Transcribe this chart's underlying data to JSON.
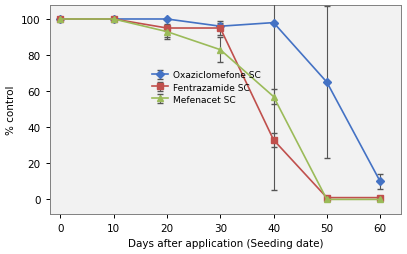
{
  "days": [
    0,
    10,
    20,
    30,
    40,
    50,
    60
  ],
  "oxaziclomefone": [
    100,
    100,
    100,
    96,
    98,
    65,
    10
  ],
  "oxaziclomefone_err": [
    0,
    0,
    0,
    2,
    93,
    42,
    4
  ],
  "fentrazamide": [
    100,
    100,
    95,
    95,
    33,
    1,
    1
  ],
  "fentrazamide_err": [
    0,
    0,
    5,
    4,
    4,
    0.5,
    0.5
  ],
  "mefenacet": [
    100,
    100,
    93,
    83,
    57,
    0,
    0
  ],
  "mefenacet_err": [
    0,
    0,
    4,
    7,
    4,
    0,
    0
  ],
  "oxaziclomefone_color": "#4472C4",
  "fentrazamide_color": "#C0504D",
  "mefenacet_color": "#9BBB59",
  "xlabel": "Days after application (Seeding date)",
  "ylabel": "% control",
  "xlim": [
    -2,
    64
  ],
  "ylim": [
    -8,
    108
  ],
  "xticks": [
    0,
    10,
    20,
    30,
    40,
    50,
    60
  ],
  "yticks": [
    0,
    20,
    40,
    60,
    80,
    100
  ],
  "legend_labels": [
    "Oxaziclomefone SC",
    "Fentrazamide SC",
    "Mefenacet SC"
  ],
  "plot_bg_color": "#F2F2F2",
  "fig_bg_color": "#FFFFFF"
}
